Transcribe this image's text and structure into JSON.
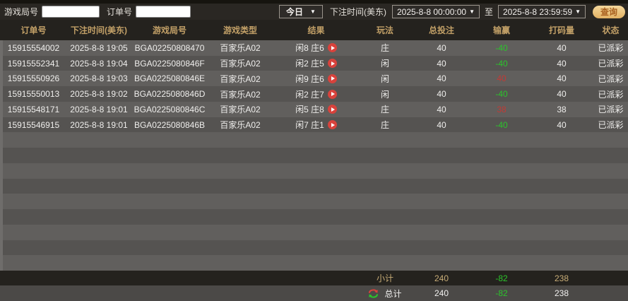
{
  "filter_bar": {
    "game_round_label": "游戏局号",
    "order_label": "订单号",
    "period_selected": "今日",
    "bet_time_label": "下注时间(美东)",
    "start_time": "2025-8-8 00:00:00",
    "to_label": "至",
    "end_time": "2025-8-8 23:59:59",
    "search_button": "查询"
  },
  "table": {
    "headers": [
      "订单号",
      "下注时间(美东)",
      "游戏局号",
      "游戏类型",
      "结果",
      "玩法",
      "总投注",
      "输赢",
      "打码量",
      "状态"
    ],
    "rows": [
      {
        "order_id": "15915554002",
        "bet_time": "2025-8-8 19:05",
        "round_id": "BGA02250808470",
        "game_type": "百家乐A02",
        "result": "闲8 庄6",
        "play": "庄",
        "total_bet": "40",
        "win_loss": "-40",
        "win_loss_color": "green",
        "rolling": "40",
        "status": "已派彩"
      },
      {
        "order_id": "15915552341",
        "bet_time": "2025-8-8 19:04",
        "round_id": "BGA0225080846F",
        "game_type": "百家乐A02",
        "result": "闲2 庄5",
        "play": "闲",
        "total_bet": "40",
        "win_loss": "-40",
        "win_loss_color": "green",
        "rolling": "40",
        "status": "已派彩"
      },
      {
        "order_id": "15915550926",
        "bet_time": "2025-8-8 19:03",
        "round_id": "BGA0225080846E",
        "game_type": "百家乐A02",
        "result": "闲9 庄6",
        "play": "闲",
        "total_bet": "40",
        "win_loss": "40",
        "win_loss_color": "red",
        "rolling": "40",
        "status": "已派彩"
      },
      {
        "order_id": "15915550013",
        "bet_time": "2025-8-8 19:02",
        "round_id": "BGA0225080846D",
        "game_type": "百家乐A02",
        "result": "闲2 庄7",
        "play": "闲",
        "total_bet": "40",
        "win_loss": "-40",
        "win_loss_color": "green",
        "rolling": "40",
        "status": "已派彩"
      },
      {
        "order_id": "15915548171",
        "bet_time": "2025-8-8 19:01",
        "round_id": "BGA0225080846C",
        "game_type": "百家乐A02",
        "result": "闲5 庄8",
        "play": "庄",
        "total_bet": "40",
        "win_loss": "38",
        "win_loss_color": "red",
        "rolling": "38",
        "status": "已派彩"
      },
      {
        "order_id": "15915546915",
        "bet_time": "2025-8-8 19:01",
        "round_id": "BGA0225080846B",
        "game_type": "百家乐A02",
        "result": "闲7 庄1",
        "play": "庄",
        "total_bet": "40",
        "win_loss": "-40",
        "win_loss_color": "green",
        "rolling": "40",
        "status": "已派彩"
      }
    ],
    "empty_row_count": 9,
    "subtotal": {
      "label": "小计",
      "total_bet": "240",
      "win_loss": "-82",
      "rolling": "238"
    },
    "grand_total": {
      "label": "总计",
      "total_bet": "240",
      "win_loss": "-82",
      "rolling": "238"
    }
  },
  "colors": {
    "header_gold": "#c2a067",
    "win_red": "#c23a35",
    "loss_green": "#2bc42b",
    "button_gold": "#e9c17b",
    "row_light": "#615f5d",
    "row_dark": "#555351"
  }
}
